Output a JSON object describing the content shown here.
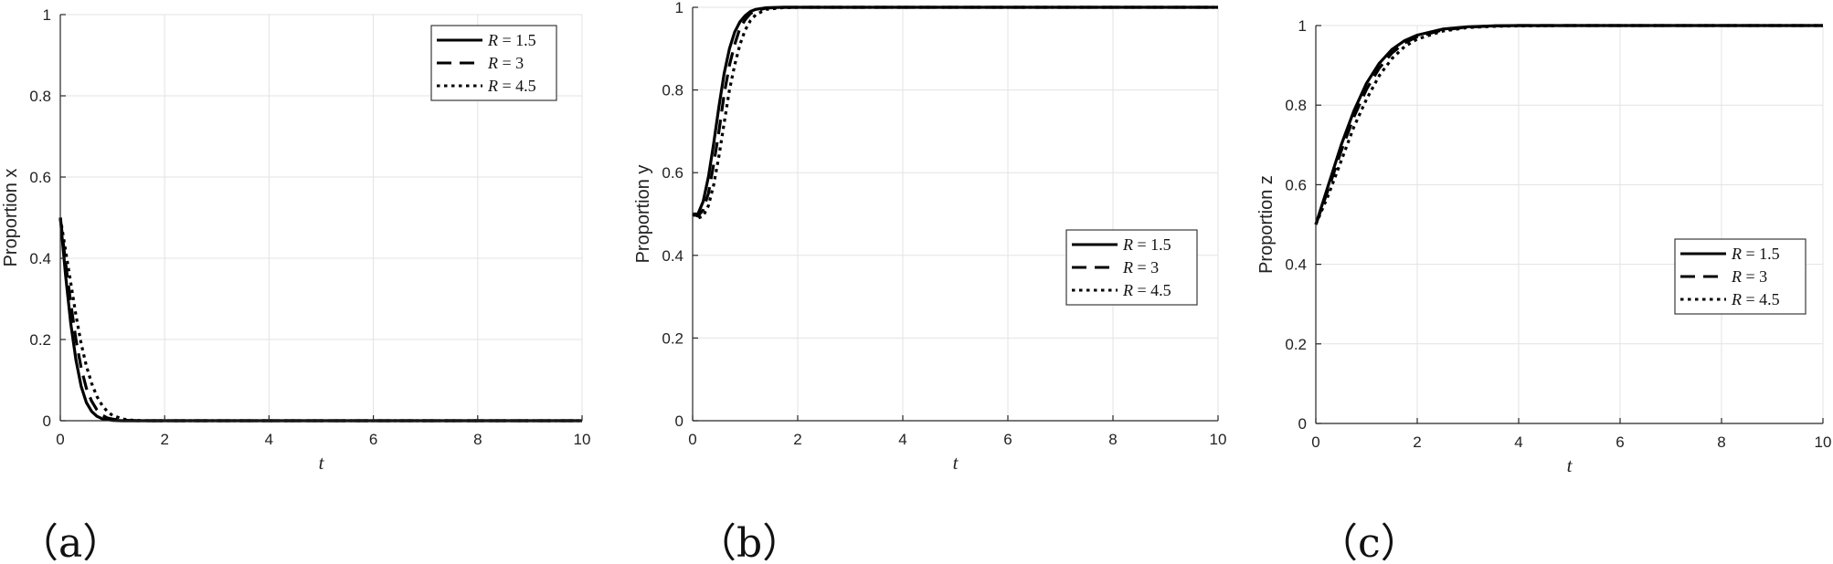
{
  "chart_data": [
    {
      "type": "line",
      "panel_label": "（a）",
      "xlabel": "t",
      "ylabel": "Proportion x",
      "xlim": [
        0,
        10
      ],
      "ylim": [
        0,
        1
      ],
      "xticks": [
        0,
        2,
        4,
        6,
        8,
        10
      ],
      "yticks": [
        0,
        0.2,
        0.4,
        0.6,
        0.8,
        1
      ],
      "grid": true,
      "legend_position": "top-right",
      "series": [
        {
          "name": "R = 1.5",
          "style": "solid",
          "x": [
            0,
            0.1,
            0.2,
            0.3,
            0.4,
            0.5,
            0.6,
            0.7,
            0.8,
            1.0,
            1.2,
            1.5,
            2,
            10
          ],
          "y": [
            0.5,
            0.36,
            0.24,
            0.15,
            0.085,
            0.045,
            0.023,
            0.011,
            0.005,
            0.001,
            0,
            0,
            0,
            0
          ]
        },
        {
          "name": "R = 3",
          "style": "dashed",
          "x": [
            0,
            0.1,
            0.2,
            0.3,
            0.4,
            0.5,
            0.6,
            0.7,
            0.8,
            0.9,
            1.0,
            1.2,
            1.5,
            2,
            10
          ],
          "y": [
            0.5,
            0.39,
            0.29,
            0.2,
            0.13,
            0.08,
            0.048,
            0.027,
            0.014,
            0.007,
            0.004,
            0.001,
            0,
            0,
            0
          ]
        },
        {
          "name": "R = 4.5",
          "style": "dotted",
          "x": [
            0,
            0.1,
            0.2,
            0.3,
            0.4,
            0.5,
            0.6,
            0.7,
            0.8,
            0.9,
            1.0,
            1.2,
            1.4,
            1.7,
            2,
            10
          ],
          "y": [
            0.5,
            0.42,
            0.34,
            0.26,
            0.19,
            0.135,
            0.092,
            0.06,
            0.038,
            0.023,
            0.013,
            0.004,
            0.001,
            0,
            0,
            0
          ]
        }
      ]
    },
    {
      "type": "line",
      "panel_label": "（b）",
      "xlabel": "t",
      "ylabel": "Proportion y",
      "xlim": [
        0,
        10
      ],
      "ylim": [
        0,
        1
      ],
      "xticks": [
        0,
        2,
        4,
        6,
        8,
        10
      ],
      "yticks": [
        0,
        0.2,
        0.4,
        0.6,
        0.8,
        1
      ],
      "grid": true,
      "legend_position": "center-right",
      "series": [
        {
          "name": "R = 1.5",
          "style": "solid",
          "x": [
            0,
            0.1,
            0.2,
            0.3,
            0.4,
            0.5,
            0.6,
            0.7,
            0.8,
            0.9,
            1.0,
            1.1,
            1.2,
            1.4,
            1.7,
            2,
            10
          ],
          "y": [
            0.5,
            0.5,
            0.53,
            0.59,
            0.67,
            0.76,
            0.84,
            0.9,
            0.94,
            0.965,
            0.98,
            0.99,
            0.995,
            0.999,
            1,
            1,
            1
          ]
        },
        {
          "name": "R = 3",
          "style": "dashed",
          "x": [
            0,
            0.1,
            0.2,
            0.3,
            0.4,
            0.5,
            0.6,
            0.7,
            0.8,
            0.9,
            1.0,
            1.1,
            1.2,
            1.4,
            1.7,
            2,
            10
          ],
          "y": [
            0.5,
            0.495,
            0.51,
            0.55,
            0.62,
            0.7,
            0.79,
            0.86,
            0.91,
            0.95,
            0.97,
            0.985,
            0.992,
            0.998,
            1,
            1,
            1
          ]
        },
        {
          "name": "R = 4.5",
          "style": "dotted",
          "x": [
            0,
            0.1,
            0.2,
            0.3,
            0.4,
            0.5,
            0.6,
            0.7,
            0.8,
            0.9,
            1.0,
            1.1,
            1.2,
            1.4,
            1.7,
            2,
            10
          ],
          "y": [
            0.5,
            0.49,
            0.495,
            0.52,
            0.57,
            0.64,
            0.72,
            0.8,
            0.86,
            0.91,
            0.945,
            0.968,
            0.982,
            0.995,
            0.999,
            1,
            1
          ]
        }
      ]
    },
    {
      "type": "line",
      "panel_label": "（c）",
      "xlabel": "t",
      "ylabel": "Proportion z",
      "xlim": [
        0,
        10
      ],
      "ylim": [
        0,
        1
      ],
      "xticks": [
        0,
        2,
        4,
        6,
        8,
        10
      ],
      "yticks": [
        0,
        0.2,
        0.4,
        0.6,
        0.8,
        1
      ],
      "grid": true,
      "legend_position": "center-right",
      "series": [
        {
          "name": "R = 1.5",
          "style": "solid",
          "x": [
            0,
            0.25,
            0.5,
            0.75,
            1.0,
            1.25,
            1.5,
            1.75,
            2.0,
            2.5,
            3.0,
            3.5,
            4.0,
            5.0,
            10
          ],
          "y": [
            0.5,
            0.6,
            0.7,
            0.785,
            0.855,
            0.905,
            0.94,
            0.962,
            0.976,
            0.991,
            0.997,
            0.999,
            1,
            1,
            1
          ]
        },
        {
          "name": "R = 3",
          "style": "dashed",
          "x": [
            0,
            0.25,
            0.5,
            0.75,
            1.0,
            1.25,
            1.5,
            1.75,
            2.0,
            2.5,
            3.0,
            3.5,
            4.0,
            5.0,
            10
          ],
          "y": [
            0.5,
            0.59,
            0.685,
            0.77,
            0.84,
            0.893,
            0.931,
            0.956,
            0.972,
            0.989,
            0.996,
            0.999,
            1,
            1,
            1
          ]
        },
        {
          "name": "R = 4.5",
          "style": "dotted",
          "x": [
            0,
            0.25,
            0.5,
            0.75,
            1.0,
            1.25,
            1.5,
            1.75,
            2.0,
            2.5,
            3.0,
            3.5,
            4.0,
            5.0,
            10
          ],
          "y": [
            0.5,
            0.575,
            0.66,
            0.745,
            0.815,
            0.874,
            0.917,
            0.947,
            0.966,
            0.986,
            0.995,
            0.998,
            0.999,
            1,
            1
          ]
        }
      ]
    }
  ]
}
